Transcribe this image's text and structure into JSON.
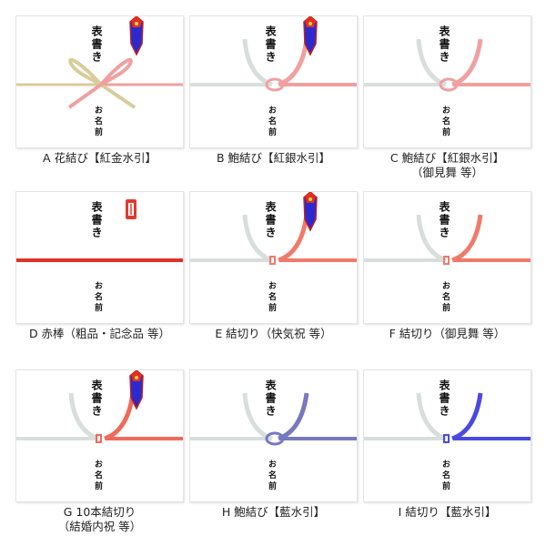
{
  "title_text": {
    "omote": "表書き",
    "namae": "お名前"
  },
  "cards": [
    {
      "id": "A",
      "lines": [
        "A 花結び【紅金水引】"
      ],
      "knot": "hana",
      "left_color": "#d8cc9a",
      "right_color": "#f0a0a0",
      "noshi": "full"
    },
    {
      "id": "B",
      "lines": [
        "B 鮑結び【紅銀水引】"
      ],
      "knot": "awabi",
      "left_color": "#d8dedb",
      "right_color": "#f0a0a0",
      "noshi": "full"
    },
    {
      "id": "C",
      "lines": [
        "C 鮑結び【紅銀水引】",
        "（御見舞 等）"
      ],
      "knot": "awabi",
      "left_color": "#d8dedb",
      "right_color": "#f0a0a0",
      "noshi": "none"
    },
    {
      "id": "D",
      "lines": [
        "D 赤棒（粗品・記念品 等）"
      ],
      "knot": "bar",
      "left_color": "#e0302a",
      "right_color": "#e0302a",
      "noshi": "stamp"
    },
    {
      "id": "E",
      "lines": [
        "E 結切り（快気祝 等）"
      ],
      "knot": "kiri",
      "left_color": "#d8dedb",
      "right_color": "#f07a6a",
      "noshi": "full"
    },
    {
      "id": "F",
      "lines": [
        "F 結切り（御見舞 等）"
      ],
      "knot": "kiri",
      "left_color": "#d8dedb",
      "right_color": "#f07a6a",
      "noshi": "none"
    },
    {
      "id": "G",
      "lines": [
        "G 10本結切り",
        "（結婚内祝 等）"
      ],
      "knot": "kiri",
      "left_color": "#d8dedb",
      "right_color": "#f06a5a",
      "noshi": "full"
    },
    {
      "id": "H",
      "lines": [
        "H 鮑結び【藍水引】"
      ],
      "knot": "awabi",
      "left_color": "#d8dedb",
      "right_color": "#7878c0",
      "noshi": "none"
    },
    {
      "id": "I",
      "lines": [
        "I 結切り【藍水引】"
      ],
      "knot": "kiri",
      "left_color": "#d8dedb",
      "right_color": "#4a4ae0",
      "noshi": "none"
    }
  ]
}
